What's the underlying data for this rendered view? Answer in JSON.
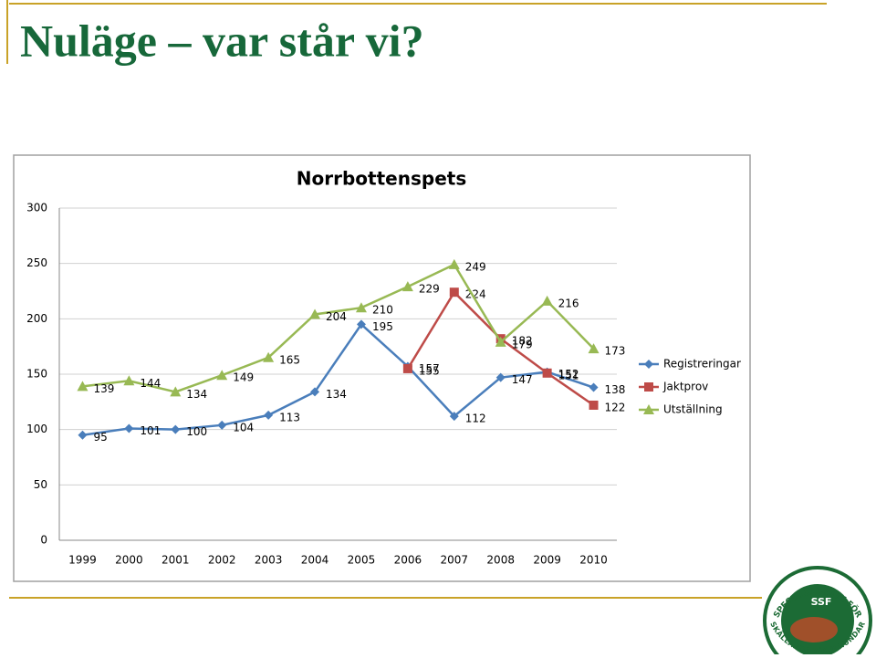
{
  "title": "Nuläge – var står vi?",
  "chart_data": {
    "type": "line",
    "title": "Norrbottenspets",
    "categories": [
      "1999",
      "2000",
      "2001",
      "2002",
      "2003",
      "2004",
      "2005",
      "2006",
      "2007",
      "2008",
      "2009",
      "2010"
    ],
    "series": [
      {
        "name": "Registreringar",
        "color": "#4a7ebb",
        "marker": "diamond",
        "values": [
          95,
          101,
          100,
          104,
          113,
          134,
          195,
          157,
          112,
          147,
          152,
          138
        ]
      },
      {
        "name": "Jaktprov",
        "color": "#be4b48",
        "marker": "square",
        "values": [
          null,
          null,
          null,
          null,
          null,
          null,
          null,
          155,
          224,
          182,
          151,
          122
        ]
      },
      {
        "name": "Utställning",
        "color": "#98b954",
        "marker": "triangle",
        "values": [
          139,
          144,
          134,
          149,
          165,
          204,
          210,
          229,
          249,
          179,
          216,
          173
        ]
      }
    ],
    "ylim": [
      0,
      300
    ],
    "yticks": [
      0,
      50,
      100,
      150,
      200,
      250,
      300
    ],
    "grid": true,
    "legend": "right",
    "data_labels": true
  },
  "logo": {
    "top_text": "SPECIALKLUBBEN FÖR",
    "center_text": "SSF",
    "bottom_text": "SKÄLLANDE FÅGELHUNDAR"
  }
}
